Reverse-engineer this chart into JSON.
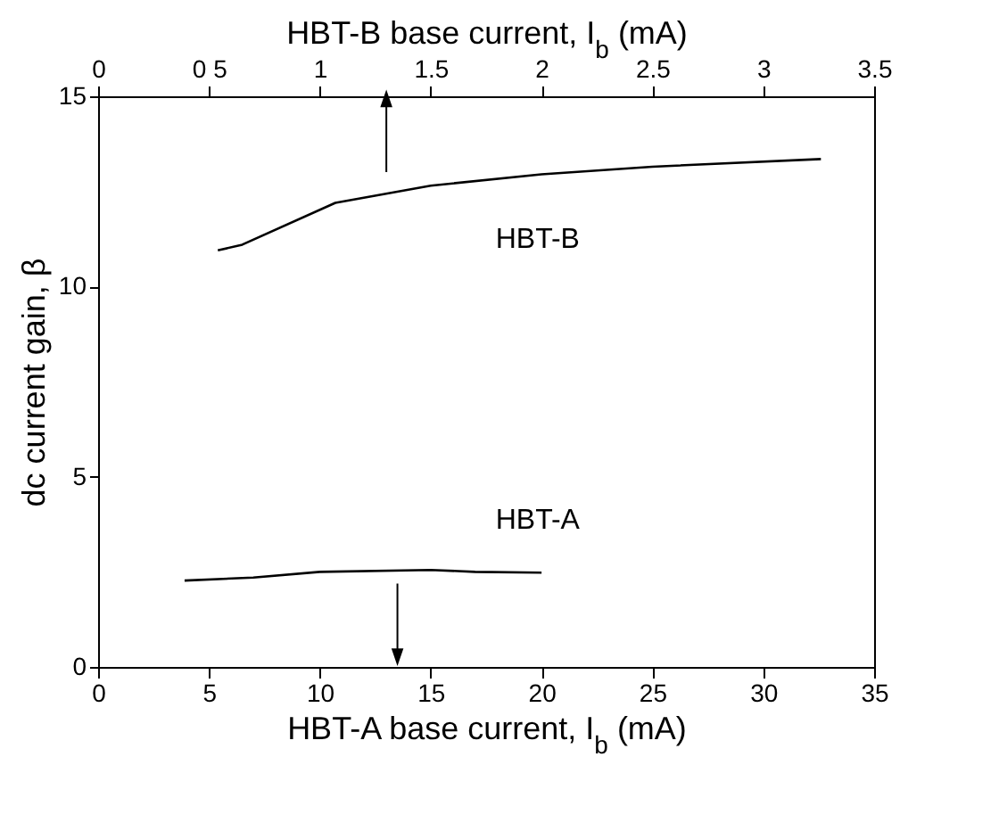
{
  "chart_data": {
    "type": "line",
    "xlabel": "HBT-A base current, I$_{b}$ (mA)",
    "x2label": "HBT-B base current, I$_{b}$ (mA)",
    "ylabel": "dc current gain, β",
    "xlim": [
      0,
      35
    ],
    "xticks": [
      0,
      5,
      10,
      15,
      20,
      25,
      30,
      35
    ],
    "x2lim": [
      0,
      3.5
    ],
    "x2ticks": [
      0,
      {
        "value": 0.5,
        "label": "0 5"
      },
      1,
      1.5,
      2,
      2.5,
      3,
      3.5
    ],
    "ylim": [
      0,
      15
    ],
    "yticks": [
      0,
      5,
      10,
      15
    ],
    "grid": false,
    "marker": "none",
    "line_style": "solid",
    "series": [
      {
        "name": "HBT-B",
        "color": "#000000",
        "axis": "x2",
        "x": [
          0.54,
          0.65,
          1.07,
          1.5,
          2,
          2.5,
          3.26
        ],
        "values": [
          10.95,
          11.1,
          12.2,
          12.65,
          12.95,
          13.15,
          13.35
        ]
      },
      {
        "name": "HBT-A",
        "color": "#000000",
        "x": [
          3.9,
          7,
          10,
          15,
          17,
          20
        ],
        "values": [
          2.27,
          2.35,
          2.5,
          2.55,
          2.5,
          2.48
        ]
      }
    ]
  }
}
